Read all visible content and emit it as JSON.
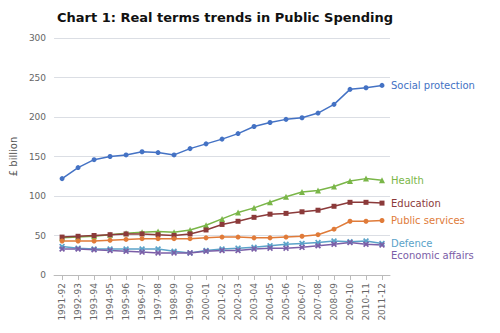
{
  "chart_data": {
    "type": "line",
    "title": "Chart 1: Real terms trends in Public Spending",
    "y_label": "£ billion",
    "categories": [
      "1991-92",
      "1992-93",
      "1993-94",
      "1994-95",
      "1995-96",
      "1996-97",
      "1997-98",
      "1998-99",
      "1999-00",
      "2000-01",
      "2001-02",
      "2002-03",
      "2003-04",
      "2004-05",
      "2005-06",
      "2006-07",
      "2007-08",
      "2008-09",
      "2009-10",
      "2010-11",
      "2011-12"
    ],
    "series": [
      {
        "name": "Social protection",
        "color": "#4472C4",
        "marker": "circle",
        "values": [
          122,
          136,
          146,
          150,
          152,
          156,
          155,
          152,
          160,
          166,
          172,
          179,
          188,
          193,
          197,
          199,
          205,
          216,
          235,
          237,
          240
        ]
      },
      {
        "name": "Health",
        "color": "#7AB648",
        "marker": "triangle",
        "values": [
          47,
          48,
          49,
          51,
          53,
          54,
          55,
          54,
          57,
          63,
          71,
          79,
          85,
          92,
          99,
          105,
          107,
          112,
          119,
          122,
          120
        ]
      },
      {
        "name": "Education",
        "color": "#8B3A3A",
        "marker": "square",
        "values": [
          48,
          49,
          50,
          51,
          52,
          52,
          51,
          50,
          52,
          57,
          64,
          68,
          73,
          77,
          78,
          80,
          82,
          87,
          92,
          92,
          91
        ]
      },
      {
        "name": "Public services",
        "color": "#E07B39",
        "marker": "circle",
        "values": [
          43,
          43,
          43,
          44,
          45,
          46,
          46,
          46,
          46,
          47,
          48,
          48,
          47,
          47,
          48,
          49,
          51,
          58,
          68,
          68,
          69
        ]
      },
      {
        "name": "Defence",
        "color": "#5BA3C9",
        "marker": "x",
        "values": [
          36,
          34,
          33,
          33,
          33,
          33,
          33,
          30,
          28,
          31,
          33,
          34,
          35,
          37,
          39,
          40,
          41,
          43,
          42,
          43,
          40
        ]
      },
      {
        "name": "Economic affairs",
        "color": "#7B5EA7",
        "marker": "x",
        "values": [
          33,
          33,
          32,
          31,
          30,
          29,
          28,
          28,
          28,
          30,
          31,
          31,
          33,
          34,
          34,
          35,
          37,
          39,
          41,
          39,
          38
        ]
      }
    ],
    "ylim": [
      0,
      300
    ],
    "yticks": [
      0,
      50,
      100,
      150,
      200,
      250,
      300
    ],
    "grid": true
  }
}
